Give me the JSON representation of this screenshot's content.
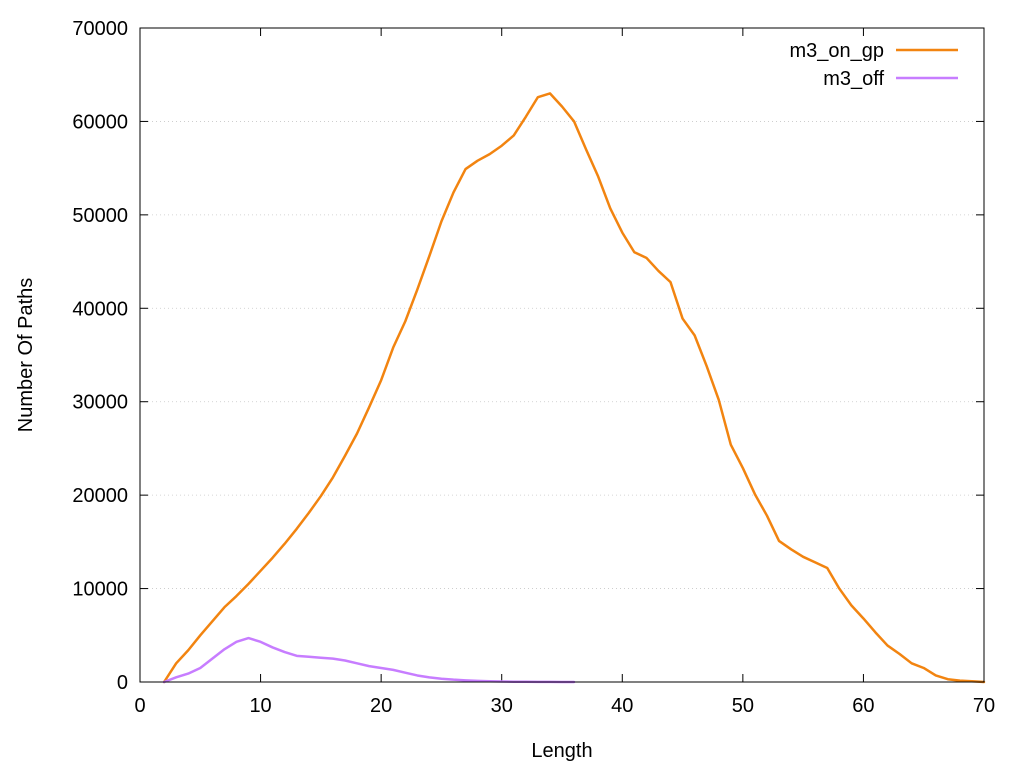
{
  "chart_data": {
    "type": "line",
    "title": "",
    "xlabel": "Length",
    "ylabel": "Number Of Paths",
    "xlim": [
      0,
      70
    ],
    "ylim": [
      0,
      70000
    ],
    "x_ticks": [
      0,
      10,
      20,
      30,
      40,
      50,
      60,
      70
    ],
    "y_ticks": [
      0,
      10000,
      20000,
      30000,
      40000,
      50000,
      60000,
      70000
    ],
    "grid": "y-dotted",
    "legend_position": "top-right",
    "series": [
      {
        "name": "m3_on_gp",
        "color": "#f28410",
        "x": [
          2,
          3,
          4,
          5,
          6,
          7,
          8,
          9,
          10,
          11,
          12,
          13,
          14,
          15,
          16,
          17,
          18,
          19,
          20,
          21,
          22,
          23,
          24,
          25,
          26,
          27,
          28,
          29,
          30,
          31,
          32,
          33,
          34,
          35,
          36,
          37,
          38,
          39,
          40,
          41,
          42,
          43,
          44,
          45,
          46,
          47,
          48,
          49,
          50,
          51,
          52,
          53,
          54,
          55,
          56,
          57,
          58,
          59,
          60,
          61,
          62,
          63,
          64,
          65,
          66,
          67,
          68,
          69,
          70
        ],
        "y": [
          0,
          2000,
          3400,
          5000,
          6500,
          8000,
          9200,
          10500,
          11900,
          13300,
          14800,
          16400,
          18100,
          19900,
          21900,
          24200,
          26600,
          29400,
          32300,
          35800,
          38600,
          42000,
          45600,
          49300,
          52400,
          54900,
          55800,
          56500,
          57400,
          58500,
          60500,
          62600,
          63000,
          61600,
          60000,
          57000,
          54100,
          50700,
          48100,
          46000,
          45400,
          44000,
          42800,
          38900,
          37100,
          33800,
          30200,
          25400,
          22900,
          20100,
          17800,
          15100,
          14200,
          13400,
          12800,
          12200,
          10000,
          8200,
          6800,
          5300,
          3900,
          3000,
          2000,
          1500,
          700,
          300,
          150,
          80,
          0
        ]
      },
      {
        "name": "m3_off",
        "color": "#c77dff",
        "x": [
          2,
          3,
          4,
          5,
          6,
          7,
          8,
          9,
          10,
          11,
          12,
          13,
          14,
          15,
          16,
          17,
          18,
          19,
          20,
          21,
          22,
          23,
          24,
          25,
          26,
          27,
          28,
          29,
          30,
          31,
          32,
          33,
          34,
          35,
          36
        ],
        "y": [
          0,
          500,
          900,
          1500,
          2500,
          3500,
          4300,
          4700,
          4300,
          3700,
          3200,
          2800,
          2700,
          2600,
          2500,
          2300,
          2000,
          1700,
          1500,
          1300,
          1000,
          700,
          500,
          350,
          250,
          180,
          120,
          80,
          50,
          30,
          20,
          15,
          10,
          5,
          0
        ]
      }
    ]
  }
}
